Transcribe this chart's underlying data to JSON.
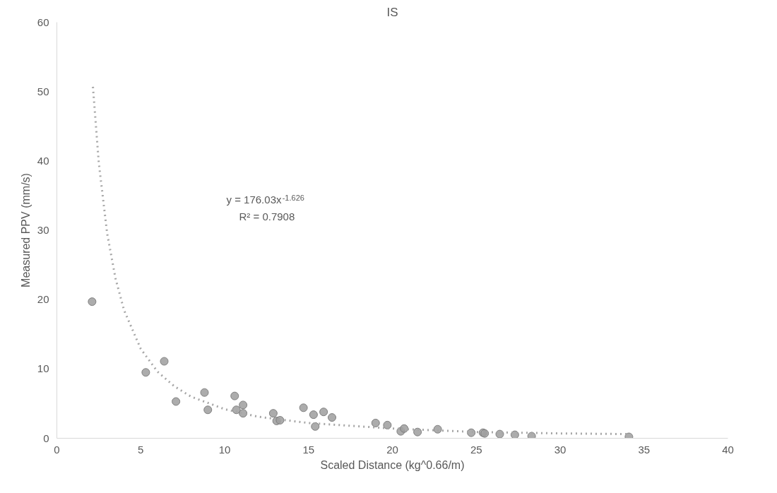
{
  "chart_data": {
    "type": "scatter",
    "title": "IS",
    "xlabel": "Scaled Distance (kg^0.66/m)",
    "ylabel": "Measured PPV (mm/s)",
    "xlim": [
      0,
      40
    ],
    "xticks": [
      0,
      5,
      10,
      15,
      20,
      25,
      30,
      35,
      40
    ],
    "ylim": [
      0,
      60
    ],
    "yticks": [
      0,
      10,
      20,
      30,
      40,
      50,
      60
    ],
    "grid": false,
    "annotations": [
      "y = 176.03x$^{-1.626}$",
      "R² = 0.7908"
    ],
    "series": [
      {
        "color": "#9e9e9e",
        "marker": "circle",
        "x": [
          2.1,
          5.3,
          6.4,
          7.1,
          8.8,
          9.0,
          10.6,
          10.7,
          11.1,
          11.1,
          12.9,
          13.1,
          13.3,
          14.7,
          15.3,
          15.4,
          15.9,
          16.4,
          19.0,
          19.7,
          20.5,
          20.7,
          21.5,
          22.7,
          24.7,
          25.4,
          25.5,
          26.4,
          27.3,
          28.3,
          34.1
        ],
        "values": [
          19.7,
          9.5,
          11.1,
          5.3,
          6.6,
          4.1,
          6.1,
          4.1,
          4.8,
          3.6,
          3.6,
          2.5,
          2.6,
          4.4,
          3.4,
          1.7,
          3.8,
          3.0,
          2.2,
          1.9,
          1.0,
          1.4,
          0.9,
          1.3,
          0.8,
          0.8,
          0.7,
          0.6,
          0.5,
          0.3,
          0.2
        ]
      },
      {
        "type": "line",
        "color": "#a6a6a6",
        "line_style": "dotted",
        "x": [
          2.15,
          2.5,
          3,
          3.5,
          4,
          5,
          6,
          7,
          8,
          10,
          12,
          15,
          20,
          25,
          30,
          34.1
        ],
        "values": [
          50.7,
          39.7,
          29.5,
          23.0,
          18.5,
          12.9,
          9.6,
          7.5,
          6.0,
          4.2,
          3.1,
          2.2,
          1.4,
          0.9,
          0.7,
          0.6
        ]
      }
    ]
  }
}
